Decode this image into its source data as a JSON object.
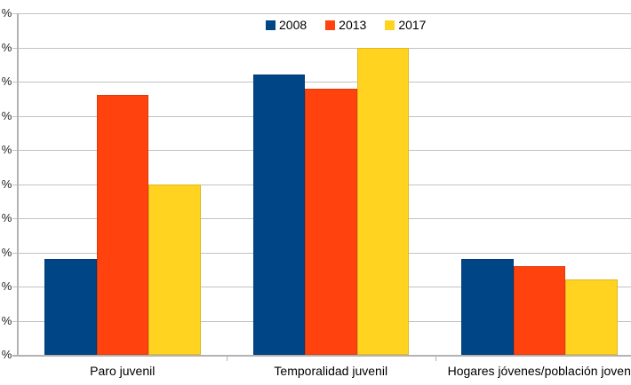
{
  "chart_data": {
    "type": "bar",
    "title": "",
    "xlabel": "",
    "ylabel": "",
    "categories": [
      "Paro juvenil",
      "Temporalidad juvenil",
      "Hogares jóvenes/población joven"
    ],
    "series": [
      {
        "name": "2008",
        "color": "#004586",
        "values": [
          28,
          82,
          28
        ]
      },
      {
        "name": "2013",
        "color": "#ff420e",
        "values": [
          76,
          78,
          26
        ]
      },
      {
        "name": "2017",
        "color": "#ffd320",
        "values": [
          50,
          90,
          22
        ]
      }
    ],
    "y_axis": {
      "unit": "%",
      "ylim": [
        0,
        100
      ],
      "step": 10,
      "tick_labels": [
        "%",
        "%",
        "%",
        "%",
        "%",
        "%",
        "%",
        "%",
        "%",
        "%",
        "%"
      ]
    },
    "legend": {
      "position": "top-center",
      "labels": [
        "2008",
        "2013",
        "2017"
      ]
    },
    "grid": true,
    "grid_color": "#c2c2c2",
    "axis_color": "#b3b3b3"
  }
}
